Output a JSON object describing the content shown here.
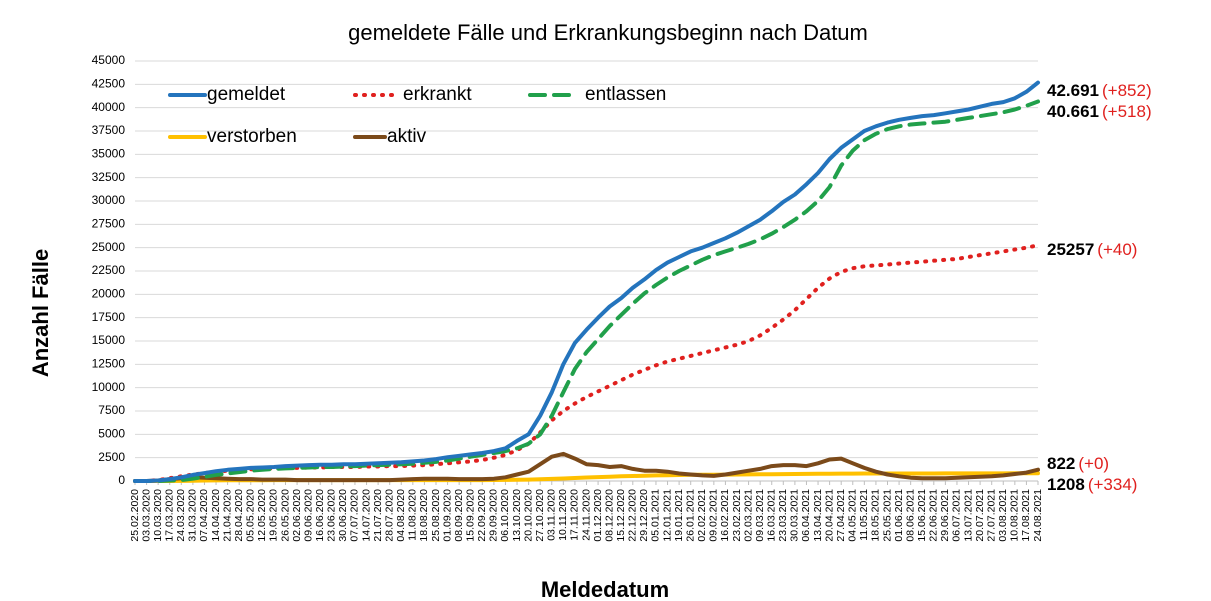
{
  "chart_data": {
    "type": "line",
    "title": "gemeldete Fälle und Erkrankungsbeginn nach Datum",
    "x_label": "Meldedatum",
    "y_label": "Anzahl Fälle",
    "categories": [
      "25.02.2020",
      "03.03.2020",
      "10.03.2020",
      "17.03.2020",
      "24.03.2020",
      "31.03.2020",
      "07.04.2020",
      "14.04.2020",
      "21.04.2020",
      "28.04.2020",
      "05.05.2020",
      "12.05.2020",
      "19.05.2020",
      "26.05.2020",
      "02.06.2020",
      "09.06.2020",
      "16.06.2020",
      "23.06.2020",
      "30.06.2020",
      "07.07.2020",
      "14.07.2020",
      "21.07.2020",
      "28.07.2020",
      "04.08.2020",
      "11.08.2020",
      "18.08.2020",
      "25.08.2020",
      "01.09.2020",
      "08.09.2020",
      "15.09.2020",
      "22.09.2020",
      "29.09.2020",
      "06.10.2020",
      "13.10.2020",
      "20.10.2020",
      "27.10.2020",
      "03.11.2020",
      "10.11.2020",
      "17.11.2020",
      "24.11.2020",
      "01.12.2020",
      "08.12.2020",
      "15.12.2020",
      "22.12.2020",
      "29.12.2020",
      "05.01.2021",
      "12.01.2021",
      "19.01.2021",
      "26.01.2021",
      "02.02.2021",
      "09.02.2021",
      "16.02.2021",
      "23.02.2021",
      "02.03.2021",
      "09.03.2021",
      "16.03.2021",
      "23.03.2021",
      "30.03.2021",
      "06.04.2021",
      "13.04.2021",
      "20.04.2021",
      "27.04.2021",
      "04.05.2021",
      "11.05.2021",
      "18.05.2021",
      "25.05.2021",
      "01.06.2021",
      "08.06.2021",
      "15.06.2021",
      "22.06.2021",
      "29.06.2021",
      "06.07.2021",
      "13.07.2021",
      "20.07.2021",
      "27.07.2021",
      "03.08.2021",
      "10.08.2021",
      "17.08.2021",
      "24.08.2021"
    ],
    "series": [
      {
        "name": "gemeldet",
        "color": "#2474bd",
        "style": "solid",
        "values": [
          0,
          0,
          50,
          200,
          400,
          650,
          850,
          1050,
          1200,
          1300,
          1400,
          1450,
          1500,
          1600,
          1650,
          1700,
          1750,
          1750,
          1800,
          1800,
          1850,
          1900,
          1950,
          2000,
          2100,
          2200,
          2350,
          2550,
          2700,
          2850,
          3000,
          3200,
          3500,
          4300,
          5000,
          7000,
          9500,
          12500,
          14800,
          16200,
          17500,
          18700,
          19600,
          20700,
          21600,
          22600,
          23400,
          24000,
          24600,
          25000,
          25500,
          26000,
          26600,
          27300,
          28000,
          28900,
          29900,
          30700,
          31800,
          33000,
          34500,
          35700,
          36600,
          37500,
          38000,
          38400,
          38700,
          38900,
          39100,
          39200,
          39400,
          39600,
          39800,
          40100,
          40400,
          40600,
          41000,
          41700,
          42691
        ]
      },
      {
        "name": "erkrankt",
        "color": "#e0201e",
        "style": "dotted",
        "values": [
          0,
          0,
          100,
          300,
          500,
          700,
          850,
          1000,
          1100,
          1200,
          1250,
          1300,
          1350,
          1400,
          1400,
          1450,
          1450,
          1500,
          1500,
          1500,
          1550,
          1550,
          1600,
          1600,
          1650,
          1700,
          1800,
          1900,
          2000,
          2100,
          2250,
          2500,
          2800,
          3300,
          4000,
          5200,
          6500,
          7500,
          8300,
          9000,
          9600,
          10200,
          10800,
          11400,
          11900,
          12400,
          12800,
          13100,
          13400,
          13700,
          14000,
          14300,
          14600,
          15000,
          15600,
          16400,
          17300,
          18300,
          19500,
          20700,
          21700,
          22400,
          22800,
          23000,
          23100,
          23200,
          23300,
          23400,
          23500,
          23600,
          23700,
          23800,
          24000,
          24200,
          24400,
          24600,
          24800,
          25000,
          25257
        ]
      },
      {
        "name": "entlassen",
        "color": "#21a04b",
        "style": "dashed",
        "values": [
          0,
          0,
          0,
          50,
          100,
          250,
          450,
          650,
          800,
          950,
          1100,
          1200,
          1300,
          1350,
          1400,
          1450,
          1500,
          1500,
          1550,
          1600,
          1650,
          1700,
          1750,
          1800,
          1850,
          1950,
          2050,
          2200,
          2400,
          2600,
          2800,
          3000,
          3200,
          3500,
          4000,
          5000,
          7000,
          9500,
          12000,
          13800,
          15200,
          16600,
          17800,
          19000,
          20100,
          21000,
          21800,
          22500,
          23100,
          23700,
          24200,
          24600,
          25000,
          25400,
          25900,
          26500,
          27200,
          28000,
          28900,
          30000,
          31500,
          33800,
          35400,
          36500,
          37200,
          37700,
          38000,
          38200,
          38300,
          38400,
          38500,
          38700,
          38900,
          39100,
          39300,
          39500,
          39800,
          40200,
          40661
        ]
      },
      {
        "name": "verstorben",
        "color": "#ffc000",
        "style": "solid",
        "values": [
          0,
          0,
          0,
          0,
          10,
          30,
          50,
          60,
          70,
          80,
          90,
          90,
          100,
          100,
          100,
          100,
          100,
          100,
          100,
          100,
          100,
          100,
          100,
          100,
          100,
          100,
          100,
          100,
          100,
          100,
          100,
          110,
          120,
          130,
          150,
          180,
          220,
          270,
          320,
          370,
          420,
          460,
          500,
          540,
          570,
          600,
          620,
          640,
          660,
          670,
          680,
          690,
          700,
          710,
          720,
          730,
          740,
          750,
          760,
          770,
          780,
          790,
          795,
          800,
          800,
          800,
          800,
          800,
          805,
          805,
          810,
          810,
          810,
          815,
          815,
          815,
          820,
          820,
          822
        ]
      },
      {
        "name": "aktiv",
        "color": "#7b4a1a",
        "style": "solid",
        "values": [
          0,
          0,
          50,
          200,
          300,
          400,
          350,
          300,
          250,
          200,
          200,
          150,
          150,
          150,
          100,
          100,
          100,
          100,
          100,
          100,
          100,
          100,
          100,
          150,
          200,
          250,
          250,
          250,
          200,
          200,
          200,
          250,
          400,
          700,
          1000,
          1800,
          2600,
          2900,
          2400,
          1800,
          1700,
          1500,
          1600,
          1300,
          1100,
          1100,
          1000,
          800,
          700,
          600,
          550,
          700,
          900,
          1100,
          1300,
          1600,
          1700,
          1700,
          1600,
          1900,
          2300,
          2400,
          1900,
          1400,
          1000,
          700,
          500,
          350,
          300,
          300,
          300,
          350,
          400,
          450,
          500,
          600,
          750,
          900,
          1208
        ]
      }
    ],
    "annotations": [
      {
        "label": "42.691",
        "change": "(+852)"
      },
      {
        "label": "40.661",
        "change": "(+518)"
      },
      {
        "label": "25257",
        "change": "(+40)"
      },
      {
        "label": "822",
        "change": "(+0)"
      },
      {
        "label": "1208",
        "change": "(+334)"
      }
    ],
    "ylim": [
      0,
      45000
    ],
    "yticks": [
      0,
      2500,
      5000,
      7500,
      10000,
      12500,
      15000,
      17500,
      20000,
      22500,
      25000,
      27500,
      30000,
      32500,
      35000,
      37500,
      40000,
      42500,
      45000
    ],
    "grid": true
  }
}
